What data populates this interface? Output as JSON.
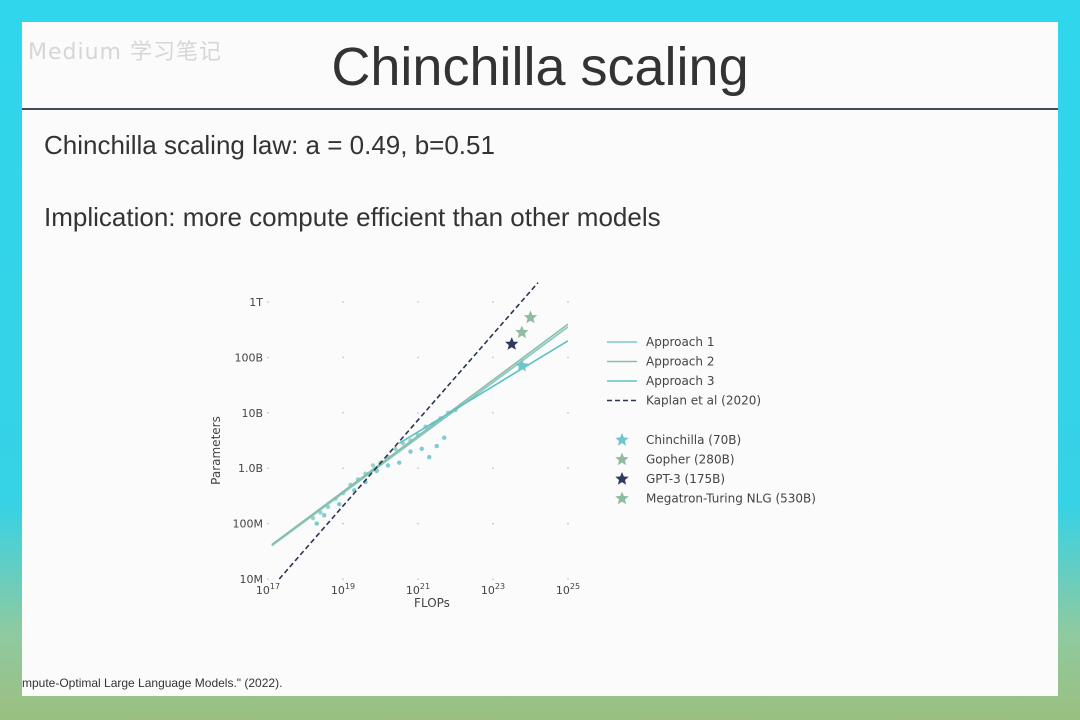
{
  "watermark": "Medium 学习笔记",
  "slide": {
    "title": "Chinchilla scaling",
    "line1": "Chinchilla scaling law: a = 0.49, b=0.51",
    "line2": "Implication: more compute efficient than other models",
    "citation": "mpute-Optimal Large Language Models.\"  (2022)."
  },
  "colors": {
    "approach1": "#7fc8c0",
    "approach2": "#8bbca6",
    "approach3": "#5cc0c8",
    "kaplan": "#2a3550",
    "chinchilla": "#6cc6cc",
    "gopher": "#8fbca0",
    "gpt3": "#2d3a5c",
    "megatron": "#8fbca0"
  },
  "chart_data": {
    "type": "line",
    "title": "",
    "xlabel": "FLOPs",
    "ylabel": "Parameters",
    "x_scale": "log",
    "y_scale": "log",
    "xlim_exp": [
      17,
      25
    ],
    "ylim_exp": [
      7,
      12
    ],
    "x_ticks": [
      {
        "exp": 17,
        "base": "10",
        "sup": "17"
      },
      {
        "exp": 19,
        "base": "10",
        "sup": "19"
      },
      {
        "exp": 21,
        "base": "10",
        "sup": "21"
      },
      {
        "exp": 23,
        "base": "10",
        "sup": "23"
      },
      {
        "exp": 25,
        "base": "10",
        "sup": "25"
      }
    ],
    "y_ticks": [
      {
        "exp": 7,
        "label": "10M"
      },
      {
        "exp": 8,
        "label": "100M"
      },
      {
        "exp": 9,
        "label": "1.0B"
      },
      {
        "exp": 10,
        "label": "10B"
      },
      {
        "exp": 11,
        "label": "100B"
      },
      {
        "exp": 12,
        "label": "1T"
      }
    ],
    "grid": true,
    "legend_position": "right",
    "series": [
      {
        "name": "Approach 1",
        "kind": "line",
        "color_key": "approach1",
        "points_log10": [
          [
            17.1,
            7.6
          ],
          [
            25.0,
            11.55
          ]
        ]
      },
      {
        "name": "Approach 2",
        "kind": "line",
        "color_key": "approach2",
        "points_log10": [
          [
            17.1,
            7.62
          ],
          [
            25.0,
            11.6
          ]
        ]
      },
      {
        "name": "Approach 3",
        "kind": "line",
        "color_key": "approach3",
        "points_log10": [
          [
            20.5,
            9.45
          ],
          [
            25.0,
            11.3
          ]
        ]
      },
      {
        "name": "Kaplan et al (2020)",
        "kind": "dashed",
        "color_key": "kaplan",
        "points_log10": [
          [
            17.3,
            7.0
          ],
          [
            24.2,
            12.35
          ]
        ]
      },
      {
        "name": "Chinchilla (70B)",
        "kind": "star",
        "color_key": "chinchilla",
        "x_log10": 23.77,
        "y_log10": 10.85
      },
      {
        "name": "Gopher (280B)",
        "kind": "star",
        "color_key": "gopher",
        "x_log10": 23.77,
        "y_log10": 11.45
      },
      {
        "name": "GPT-3 (175B)",
        "kind": "star",
        "color_key": "gpt3",
        "x_log10": 23.5,
        "y_log10": 11.24
      },
      {
        "name": "Megatron-Turing NLG (530B)",
        "kind": "star",
        "color_key": "megatron",
        "x_log10": 24.0,
        "y_log10": 11.72
      }
    ],
    "scatter_clusters": [
      {
        "color_key": "approach1",
        "points_log10": [
          [
            18.2,
            8.1
          ],
          [
            18.4,
            8.2
          ],
          [
            18.6,
            8.3
          ],
          [
            18.8,
            8.45
          ],
          [
            19.0,
            8.55
          ],
          [
            19.2,
            8.7
          ],
          [
            19.4,
            8.8
          ],
          [
            19.6,
            8.9
          ],
          [
            19.8,
            9.05
          ],
          [
            20.0,
            9.1
          ],
          [
            20.2,
            9.2
          ],
          [
            20.4,
            9.35
          ],
          [
            20.6,
            9.45
          ],
          [
            20.8,
            9.5
          ],
          [
            21.0,
            9.6
          ],
          [
            21.2,
            9.75
          ],
          [
            21.4,
            9.8
          ],
          [
            21.6,
            9.9
          ],
          [
            21.8,
            10.0
          ],
          [
            22.0,
            10.05
          ]
        ]
      },
      {
        "color_key": "approach3",
        "points_log10": [
          [
            18.3,
            8.0
          ],
          [
            18.5,
            8.15
          ],
          [
            18.9,
            8.35
          ],
          [
            19.3,
            8.6
          ],
          [
            19.6,
            8.75
          ],
          [
            19.9,
            8.95
          ],
          [
            20.2,
            9.05
          ],
          [
            20.5,
            9.1
          ],
          [
            20.8,
            9.3
          ],
          [
            21.1,
            9.35
          ],
          [
            21.3,
            9.2
          ],
          [
            21.5,
            9.4
          ],
          [
            21.7,
            9.55
          ]
        ]
      }
    ]
  }
}
